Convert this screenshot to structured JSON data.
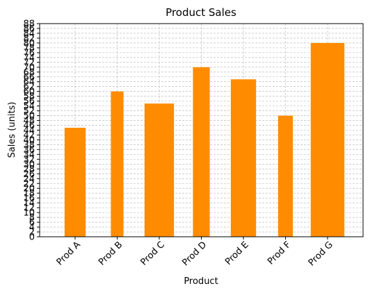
{
  "chart_data": {
    "type": "bar",
    "title": "Product Sales",
    "xlabel": "Product",
    "ylabel": "Sales (units)",
    "categories": [
      "Prod A",
      "Prod B",
      "Prod C",
      "Prod D",
      "Prod E",
      "Prod F",
      "Prod G"
    ],
    "values": [
      45,
      60,
      55,
      70,
      65,
      50,
      80
    ],
    "bar_widths": [
      0.5,
      0.3,
      0.7,
      0.4,
      0.6,
      0.35,
      0.8
    ],
    "ylim": [
      0,
      88
    ],
    "ytick_step": 2,
    "grid": true,
    "bar_color": "#ff8c00",
    "grid_color": "#b0b0b0"
  }
}
